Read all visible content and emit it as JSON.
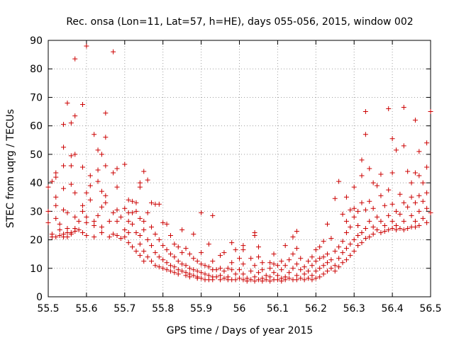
{
  "chart_data": {
    "type": "scatter",
    "title": "Rec. onsa (Lon=11, Lat=57, h=HE), days 055-056, 2015, window 002",
    "xlabel": "GPS time / Days of year 2015",
    "ylabel": "STEC from uqrg / TECUs",
    "xlim": [
      55.5,
      56.5
    ],
    "ylim": [
      0,
      90
    ],
    "xticks": [
      "55.5",
      "55.6",
      "55.7",
      "55.8",
      "55.9",
      "56",
      "56.1",
      "56.2",
      "56.3",
      "56.4",
      "56.5"
    ],
    "yticks": [
      "0",
      "10",
      "20",
      "30",
      "40",
      "50",
      "60",
      "70",
      "80",
      "90"
    ],
    "grid": true,
    "marker": "plus",
    "color": "#cc0000",
    "points": [
      [
        55.5,
        38.5
      ],
      [
        55.5,
        30.0
      ],
      [
        55.5,
        26.0
      ],
      [
        55.51,
        22.0
      ],
      [
        55.51,
        21.0
      ],
      [
        55.51,
        40.5
      ],
      [
        55.52,
        43.5
      ],
      [
        55.52,
        42.0
      ],
      [
        55.52,
        35.0
      ],
      [
        55.52,
        32.0
      ],
      [
        55.52,
        27.5
      ],
      [
        55.52,
        21.0
      ],
      [
        55.53,
        25.5
      ],
      [
        55.53,
        23.5
      ],
      [
        55.53,
        21.5
      ],
      [
        55.54,
        52.5
      ],
      [
        55.54,
        46.0
      ],
      [
        55.54,
        38.0
      ],
      [
        55.54,
        30.5
      ],
      [
        55.54,
        22.0
      ],
      [
        55.54,
        21.0
      ],
      [
        55.54,
        60.5
      ],
      [
        55.55,
        29.5
      ],
      [
        55.55,
        24.0
      ],
      [
        55.55,
        22.5
      ],
      [
        55.55,
        21.0
      ],
      [
        55.55,
        68.0
      ],
      [
        55.56,
        61.0
      ],
      [
        55.56,
        49.5
      ],
      [
        55.56,
        46.0
      ],
      [
        55.56,
        39.5
      ],
      [
        55.56,
        22.5
      ],
      [
        55.56,
        22.0
      ],
      [
        55.57,
        63.5
      ],
      [
        55.57,
        50.0
      ],
      [
        55.57,
        36.5
      ],
      [
        55.57,
        28.0
      ],
      [
        55.57,
        24.0
      ],
      [
        55.57,
        23.0
      ],
      [
        55.57,
        83.5
      ],
      [
        55.58,
        26.5
      ],
      [
        55.58,
        23.5
      ],
      [
        55.59,
        67.5
      ],
      [
        55.59,
        45.5
      ],
      [
        55.59,
        32.0
      ],
      [
        55.59,
        30.0
      ],
      [
        55.59,
        22.5
      ],
      [
        55.6,
        88.0
      ],
      [
        55.6,
        36.5
      ],
      [
        55.6,
        28.0
      ],
      [
        55.6,
        26.0
      ],
      [
        55.6,
        21.5
      ],
      [
        55.61,
        42.5
      ],
      [
        55.61,
        39.0
      ],
      [
        55.61,
        34.0
      ],
      [
        55.62,
        26.5
      ],
      [
        55.62,
        25.0
      ],
      [
        55.62,
        21.0
      ],
      [
        55.62,
        57.0
      ],
      [
        55.63,
        51.5
      ],
      [
        55.63,
        44.5
      ],
      [
        55.63,
        40.5
      ],
      [
        55.63,
        28.5
      ],
      [
        55.64,
        37.0
      ],
      [
        55.64,
        31.5
      ],
      [
        55.64,
        24.5
      ],
      [
        55.64,
        22.5
      ],
      [
        55.64,
        50.0
      ],
      [
        55.65,
        64.5
      ],
      [
        55.65,
        56.0
      ],
      [
        55.65,
        46.0
      ],
      [
        55.65,
        35.5
      ],
      [
        55.65,
        33.0
      ],
      [
        55.66,
        21.0
      ],
      [
        55.66,
        26.5
      ],
      [
        55.67,
        86.0
      ],
      [
        55.67,
        43.5
      ],
      [
        55.67,
        29.5
      ],
      [
        55.67,
        22.0
      ],
      [
        55.68,
        45.0
      ],
      [
        55.68,
        38.5
      ],
      [
        55.68,
        30.5
      ],
      [
        55.68,
        26.5
      ],
      [
        55.68,
        21.5
      ],
      [
        55.69,
        28.0
      ],
      [
        55.69,
        20.5
      ],
      [
        55.7,
        46.5
      ],
      [
        55.7,
        31.0
      ],
      [
        55.7,
        23.5
      ],
      [
        55.7,
        21.0
      ],
      [
        55.71,
        34.0
      ],
      [
        55.71,
        29.5
      ],
      [
        55.71,
        26.5
      ],
      [
        55.71,
        22.5
      ],
      [
        55.71,
        19.0
      ],
      [
        55.72,
        33.5
      ],
      [
        55.72,
        29.5
      ],
      [
        55.72,
        25.5
      ],
      [
        55.72,
        17.5
      ],
      [
        55.73,
        33.0
      ],
      [
        55.73,
        30.0
      ],
      [
        55.73,
        22.5
      ],
      [
        55.73,
        16.0
      ],
      [
        55.74,
        40.0
      ],
      [
        55.74,
        38.5
      ],
      [
        55.74,
        27.5
      ],
      [
        55.74,
        21.5
      ],
      [
        55.74,
        18.5
      ],
      [
        55.74,
        14.5
      ],
      [
        55.75,
        44.0
      ],
      [
        55.75,
        26.5
      ],
      [
        55.75,
        23.5
      ],
      [
        55.75,
        16.0
      ],
      [
        55.75,
        12.5
      ],
      [
        55.76,
        41.0
      ],
      [
        55.76,
        29.5
      ],
      [
        55.76,
        20.0
      ],
      [
        55.76,
        14.0
      ],
      [
        55.77,
        33.0
      ],
      [
        55.77,
        24.5
      ],
      [
        55.77,
        18.0
      ],
      [
        55.77,
        12.5
      ],
      [
        55.78,
        32.5
      ],
      [
        55.78,
        22.0
      ],
      [
        55.78,
        15.5
      ],
      [
        55.78,
        11.0
      ],
      [
        55.79,
        32.5
      ],
      [
        55.79,
        20.0
      ],
      [
        55.79,
        14.0
      ],
      [
        55.79,
        10.5
      ],
      [
        55.8,
        26.0
      ],
      [
        55.8,
        18.0
      ],
      [
        55.8,
        13.0
      ],
      [
        55.8,
        10.0
      ],
      [
        55.81,
        25.5
      ],
      [
        55.81,
        16.5
      ],
      [
        55.81,
        12.0
      ],
      [
        55.81,
        9.5
      ],
      [
        55.82,
        21.5
      ],
      [
        55.82,
        15.0
      ],
      [
        55.82,
        11.0
      ],
      [
        55.82,
        9.0
      ],
      [
        55.83,
        18.5
      ],
      [
        55.83,
        14.0
      ],
      [
        55.83,
        10.5
      ],
      [
        55.83,
        8.5
      ],
      [
        55.84,
        17.5
      ],
      [
        55.84,
        12.5
      ],
      [
        55.84,
        9.5
      ],
      [
        55.84,
        8.0
      ],
      [
        55.85,
        23.5
      ],
      [
        55.85,
        15.5
      ],
      [
        55.85,
        11.5
      ],
      [
        55.85,
        9.0
      ],
      [
        55.86,
        17.0
      ],
      [
        55.86,
        11.0
      ],
      [
        55.86,
        8.5
      ],
      [
        55.86,
        7.5
      ],
      [
        55.87,
        15.0
      ],
      [
        55.87,
        10.0
      ],
      [
        55.87,
        8.0
      ],
      [
        55.87,
        7.0
      ],
      [
        55.88,
        22.0
      ],
      [
        55.88,
        13.5
      ],
      [
        55.88,
        9.5
      ],
      [
        55.88,
        7.5
      ],
      [
        55.89,
        12.5
      ],
      [
        55.89,
        9.0
      ],
      [
        55.89,
        7.0
      ],
      [
        55.89,
        6.5
      ],
      [
        55.9,
        29.5
      ],
      [
        55.9,
        15.5
      ],
      [
        55.9,
        11.5
      ],
      [
        55.9,
        8.5
      ],
      [
        55.9,
        6.5
      ],
      [
        55.91,
        11.0
      ],
      [
        55.91,
        8.0
      ],
      [
        55.91,
        6.0
      ],
      [
        55.92,
        18.5
      ],
      [
        55.92,
        10.5
      ],
      [
        55.92,
        7.5
      ],
      [
        55.92,
        6.0
      ],
      [
        55.93,
        28.5
      ],
      [
        55.93,
        12.5
      ],
      [
        55.93,
        9.5
      ],
      [
        55.93,
        7.0
      ],
      [
        55.93,
        6.0
      ],
      [
        55.94,
        9.5
      ],
      [
        55.94,
        7.0
      ],
      [
        55.95,
        14.5
      ],
      [
        55.95,
        10.0
      ],
      [
        55.95,
        7.5
      ],
      [
        55.95,
        6.0
      ],
      [
        55.96,
        15.5
      ],
      [
        55.96,
        9.0
      ],
      [
        55.96,
        6.5
      ],
      [
        55.97,
        10.0
      ],
      [
        55.97,
        7.0
      ],
      [
        55.97,
        6.0
      ],
      [
        55.98,
        19.0
      ],
      [
        55.98,
        12.0
      ],
      [
        55.98,
        9.5
      ],
      [
        55.98,
        6.0
      ],
      [
        55.99,
        16.5
      ],
      [
        55.99,
        8.0
      ],
      [
        55.99,
        6.0
      ],
      [
        56.0,
        13.5
      ],
      [
        56.0,
        9.5
      ],
      [
        56.0,
        6.5
      ],
      [
        56.01,
        18.0
      ],
      [
        56.01,
        16.5
      ],
      [
        56.01,
        11.5
      ],
      [
        56.01,
        8.0
      ],
      [
        56.01,
        6.0
      ],
      [
        56.02,
        6.5
      ],
      [
        56.02,
        5.5
      ],
      [
        56.03,
        13.5
      ],
      [
        56.03,
        9.0
      ],
      [
        56.03,
        6.0
      ],
      [
        56.04,
        22.5
      ],
      [
        56.04,
        21.5
      ],
      [
        56.04,
        11.0
      ],
      [
        56.04,
        7.0
      ],
      [
        56.04,
        5.5
      ],
      [
        56.05,
        17.5
      ],
      [
        56.05,
        14.0
      ],
      [
        56.05,
        8.5
      ],
      [
        56.05,
        6.0
      ],
      [
        56.06,
        12.0
      ],
      [
        56.06,
        9.5
      ],
      [
        56.06,
        6.5
      ],
      [
        56.06,
        5.5
      ],
      [
        56.07,
        7.5
      ],
      [
        56.07,
        6.0
      ],
      [
        56.08,
        12.0
      ],
      [
        56.08,
        10.0
      ],
      [
        56.08,
        7.0
      ],
      [
        56.08,
        5.5
      ],
      [
        56.09,
        15.0
      ],
      [
        56.09,
        11.5
      ],
      [
        56.09,
        8.5
      ],
      [
        56.09,
        6.0
      ],
      [
        56.1,
        11.0
      ],
      [
        56.1,
        7.5
      ],
      [
        56.1,
        6.0
      ],
      [
        56.11,
        12.5
      ],
      [
        56.11,
        9.5
      ],
      [
        56.11,
        6.5
      ],
      [
        56.11,
        5.5
      ],
      [
        56.12,
        18.0
      ],
      [
        56.12,
        11.0
      ],
      [
        56.12,
        7.0
      ],
      [
        56.12,
        6.0
      ],
      [
        56.13,
        13.0
      ],
      [
        56.13,
        8.5
      ],
      [
        56.13,
        6.5
      ],
      [
        56.14,
        21.0
      ],
      [
        56.14,
        15.0
      ],
      [
        56.14,
        10.0
      ],
      [
        56.14,
        6.0
      ],
      [
        56.15,
        23.0
      ],
      [
        56.15,
        17.0
      ],
      [
        56.15,
        11.5
      ],
      [
        56.15,
        7.5
      ],
      [
        56.15,
        6.0
      ],
      [
        56.16,
        13.5
      ],
      [
        56.16,
        9.5
      ],
      [
        56.16,
        6.5
      ],
      [
        56.17,
        10.5
      ],
      [
        56.17,
        8.0
      ],
      [
        56.17,
        6.0
      ],
      [
        56.18,
        12.5
      ],
      [
        56.18,
        9.0
      ],
      [
        56.18,
        6.5
      ],
      [
        56.19,
        14.0
      ],
      [
        56.19,
        11.0
      ],
      [
        56.19,
        7.5
      ],
      [
        56.19,
        6.0
      ],
      [
        56.2,
        16.5
      ],
      [
        56.2,
        12.5
      ],
      [
        56.2,
        9.0
      ],
      [
        56.2,
        6.5
      ],
      [
        56.21,
        17.5
      ],
      [
        56.21,
        13.5
      ],
      [
        56.21,
        10.0
      ],
      [
        56.21,
        7.0
      ],
      [
        56.22,
        19.5
      ],
      [
        56.22,
        14.0
      ],
      [
        56.22,
        11.0
      ],
      [
        56.22,
        8.0
      ],
      [
        56.23,
        25.5
      ],
      [
        56.23,
        15.0
      ],
      [
        56.23,
        12.0
      ],
      [
        56.23,
        9.0
      ],
      [
        56.24,
        20.5
      ],
      [
        56.24,
        13.0
      ],
      [
        56.24,
        10.0
      ],
      [
        56.25,
        34.5
      ],
      [
        56.25,
        16.0
      ],
      [
        56.25,
        11.0
      ],
      [
        56.25,
        9.0
      ],
      [
        56.26,
        40.5
      ],
      [
        56.26,
        17.5
      ],
      [
        56.26,
        13.5
      ],
      [
        56.26,
        10.5
      ],
      [
        56.27,
        29.0
      ],
      [
        56.27,
        19.5
      ],
      [
        56.27,
        15.5
      ],
      [
        56.27,
        12.0
      ],
      [
        56.28,
        35.0
      ],
      [
        56.28,
        26.5
      ],
      [
        56.28,
        22.5
      ],
      [
        56.28,
        17.0
      ],
      [
        56.28,
        13.0
      ],
      [
        56.29,
        30.5
      ],
      [
        56.29,
        24.5
      ],
      [
        56.29,
        18.5
      ],
      [
        56.29,
        14.5
      ],
      [
        56.3,
        38.5
      ],
      [
        56.3,
        31.0
      ],
      [
        56.3,
        28.0
      ],
      [
        56.3,
        20.0
      ],
      [
        56.3,
        16.0
      ],
      [
        56.31,
        30.0
      ],
      [
        56.31,
        25.0
      ],
      [
        56.31,
        21.5
      ],
      [
        56.31,
        18.0
      ],
      [
        56.32,
        48.0
      ],
      [
        56.32,
        42.5
      ],
      [
        56.32,
        33.0
      ],
      [
        56.32,
        22.5
      ],
      [
        56.32,
        19.0
      ],
      [
        56.33,
        65.0
      ],
      [
        56.33,
        57.0
      ],
      [
        56.33,
        30.5
      ],
      [
        56.33,
        24.0
      ],
      [
        56.33,
        20.5
      ],
      [
        56.34,
        45.0
      ],
      [
        56.34,
        33.5
      ],
      [
        56.34,
        26.5
      ],
      [
        56.34,
        21.0
      ],
      [
        56.35,
        40.0
      ],
      [
        56.35,
        31.0
      ],
      [
        56.35,
        24.5
      ],
      [
        56.35,
        22.0
      ],
      [
        56.36,
        39.0
      ],
      [
        56.36,
        28.0
      ],
      [
        56.36,
        23.5
      ],
      [
        56.37,
        43.0
      ],
      [
        56.37,
        35.5
      ],
      [
        56.37,
        26.5
      ],
      [
        56.37,
        22.5
      ],
      [
        56.38,
        32.0
      ],
      [
        56.38,
        25.0
      ],
      [
        56.38,
        23.0
      ],
      [
        56.39,
        66.0
      ],
      [
        56.39,
        37.5
      ],
      [
        56.39,
        28.5
      ],
      [
        56.39,
        23.5
      ],
      [
        56.4,
        55.5
      ],
      [
        56.4,
        43.5
      ],
      [
        56.4,
        32.5
      ],
      [
        56.4,
        26.5
      ],
      [
        56.4,
        24.0
      ],
      [
        56.41,
        51.5
      ],
      [
        56.41,
        30.0
      ],
      [
        56.41,
        25.0
      ],
      [
        56.41,
        23.5
      ],
      [
        56.42,
        36.0
      ],
      [
        56.42,
        29.0
      ],
      [
        56.42,
        24.0
      ],
      [
        56.43,
        66.5
      ],
      [
        56.43,
        53.0
      ],
      [
        56.43,
        33.0
      ],
      [
        56.43,
        26.5
      ],
      [
        56.43,
        23.5
      ],
      [
        56.44,
        44.0
      ],
      [
        56.44,
        31.5
      ],
      [
        56.44,
        24.0
      ],
      [
        56.45,
        40.0
      ],
      [
        56.45,
        35.0
      ],
      [
        56.45,
        28.5
      ],
      [
        56.45,
        24.5
      ],
      [
        56.46,
        62.0
      ],
      [
        56.46,
        43.5
      ],
      [
        56.46,
        33.0
      ],
      [
        56.46,
        26.5
      ],
      [
        56.46,
        24.5
      ],
      [
        56.47,
        51.0
      ],
      [
        56.47,
        42.5
      ],
      [
        56.47,
        35.5
      ],
      [
        56.47,
        30.0
      ],
      [
        56.47,
        25.0
      ],
      [
        56.48,
        40.0
      ],
      [
        56.48,
        33.5
      ],
      [
        56.48,
        27.5
      ],
      [
        56.49,
        54.0
      ],
      [
        56.49,
        45.5
      ],
      [
        56.49,
        36.5
      ],
      [
        56.49,
        31.0
      ],
      [
        56.49,
        26.0
      ],
      [
        56.5,
        65.0
      ],
      [
        56.5,
        29.5
      ]
    ]
  }
}
